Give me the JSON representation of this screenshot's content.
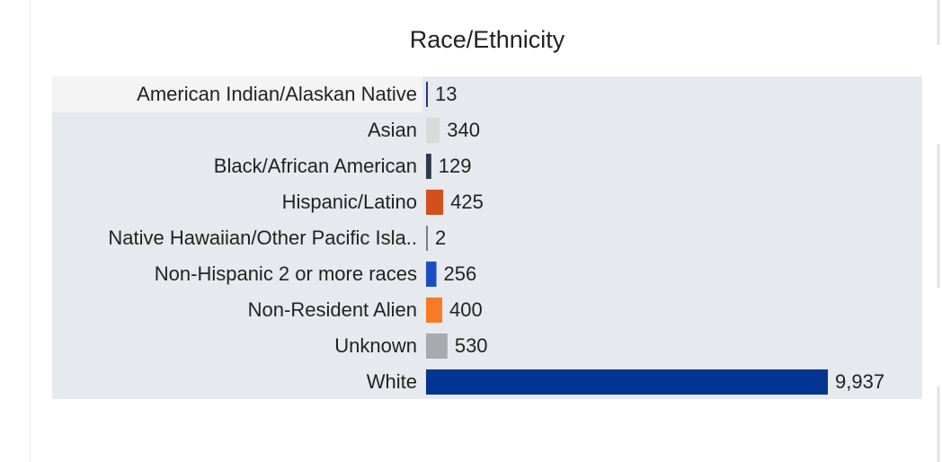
{
  "chart_data": {
    "type": "bar",
    "orientation": "horizontal",
    "title": "Race/Ethnicity",
    "categories": [
      "American Indian/Alaskan Native",
      "Asian",
      "Black/African American",
      "Hispanic/Latino",
      "Native Hawaiian/Other Pacific Isla..",
      "Non-Hispanic 2 or more races",
      "Non-Resident Alien",
      "Unknown",
      "White"
    ],
    "values": [
      13,
      340,
      129,
      425,
      2,
      256,
      400,
      530,
      9937
    ],
    "value_labels": [
      "13",
      "340",
      "129",
      "425",
      "2",
      "256",
      "400",
      "530",
      "9,937"
    ],
    "colors": [
      "#1f3e7a",
      "#d9dadc",
      "#2b3a4f",
      "#d3501d",
      "#7b7f86",
      "#1a4fc4",
      "#fa7a26",
      "#a9aaad",
      "#003591"
    ]
  }
}
